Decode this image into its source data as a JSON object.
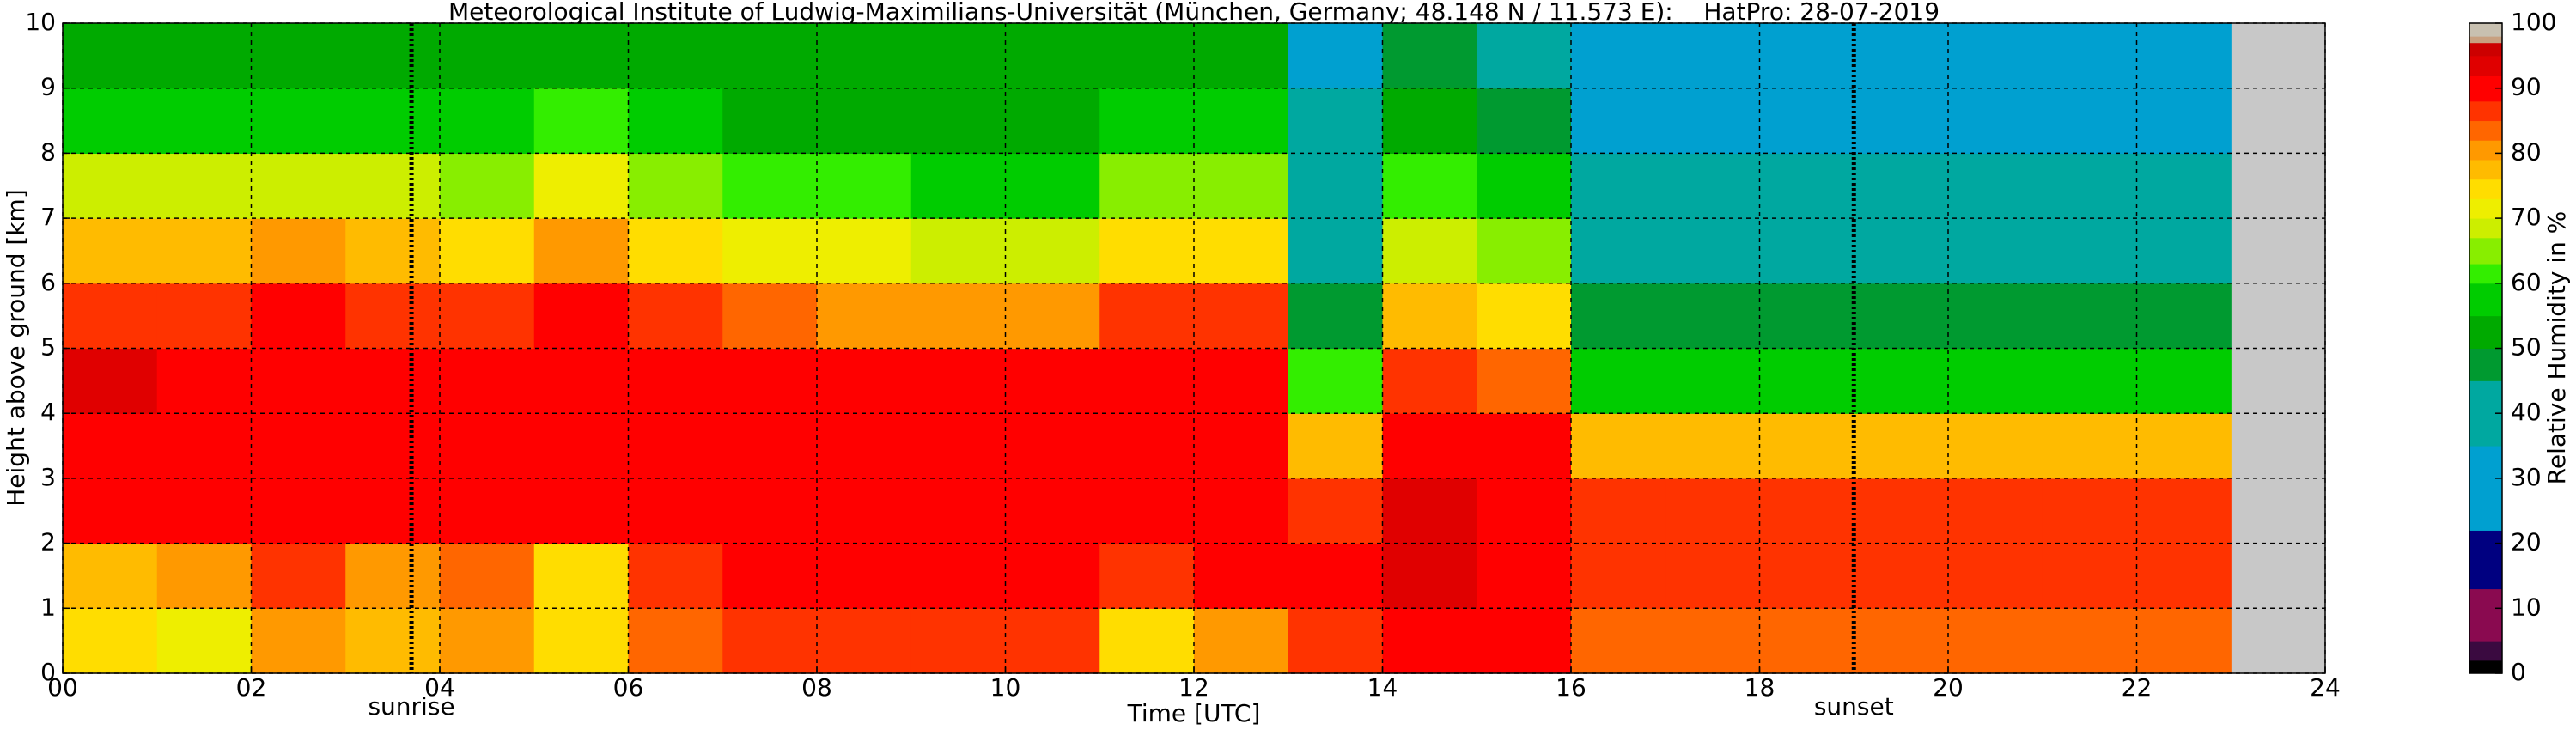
{
  "chart_data": {
    "type": "heatmap",
    "title": "Meteorological Institute of Ludwig-Maximilians-Universität (München, Germany; 48.148 N / 11.573 E):    HatPro: 28-07-2019",
    "xlabel": "Time [UTC]",
    "ylabel": "Height above ground [km]",
    "colorbar_label": "Relative Humidity in %",
    "x": [
      0,
      1,
      2,
      3,
      4,
      5,
      6,
      7,
      8,
      9,
      10,
      11,
      12,
      13,
      14,
      15,
      16,
      17,
      18,
      19,
      20,
      21,
      22
    ],
    "y": [
      0,
      1,
      2,
      3,
      4,
      5,
      6,
      7,
      8,
      9
    ],
    "z": [
      [
        75,
        78,
        90,
        92,
        93,
        88,
        78,
        68,
        58,
        52
      ],
      [
        72,
        80,
        90,
        92,
        92,
        88,
        78,
        68,
        58,
        52
      ],
      [
        82,
        86,
        90,
        92,
        92,
        90,
        80,
        70,
        60,
        53
      ],
      [
        78,
        82,
        90,
        92,
        92,
        88,
        78,
        68,
        58,
        52
      ],
      [
        80,
        84,
        90,
        92,
        92,
        86,
        76,
        66,
        56,
        52
      ],
      [
        74,
        74,
        90,
        92,
        92,
        90,
        82,
        72,
        62,
        55
      ],
      [
        85,
        88,
        92,
        92,
        92,
        86,
        74,
        64,
        56,
        52
      ],
      [
        88,
        90,
        92,
        92,
        91,
        84,
        72,
        62,
        55,
        52
      ],
      [
        88,
        90,
        92,
        92,
        90,
        82,
        72,
        62,
        55,
        52
      ],
      [
        88,
        90,
        92,
        92,
        90,
        82,
        70,
        60,
        55,
        52
      ],
      [
        86,
        90,
        92,
        92,
        90,
        82,
        70,
        60,
        54,
        52
      ],
      [
        76,
        88,
        92,
        92,
        92,
        88,
        76,
        64,
        56,
        52
      ],
      [
        82,
        90,
        92,
        92,
        90,
        86,
        76,
        64,
        56,
        52
      ],
      [
        88,
        90,
        86,
        78,
        62,
        50,
        40,
        38,
        36,
        30
      ],
      [
        92,
        93,
        94,
        92,
        86,
        78,
        70,
        62,
        55,
        48
      ],
      [
        90,
        92,
        92,
        90,
        84,
        74,
        66,
        58,
        50,
        45
      ],
      [
        85,
        88,
        86,
        78,
        58,
        48,
        40,
        38,
        35,
        30
      ],
      [
        85,
        88,
        86,
        78,
        58,
        48,
        40,
        38,
        35,
        30
      ],
      [
        85,
        88,
        86,
        78,
        58,
        48,
        40,
        38,
        35,
        30
      ],
      [
        85,
        88,
        86,
        78,
        58,
        48,
        40,
        38,
        35,
        30
      ],
      [
        85,
        88,
        86,
        78,
        58,
        48,
        40,
        38,
        35,
        30
      ],
      [
        85,
        88,
        86,
        78,
        58,
        48,
        40,
        38,
        35,
        30
      ],
      [
        85,
        88,
        86,
        78,
        58,
        48,
        40,
        38,
        35,
        30
      ]
    ],
    "xlim": [
      0,
      24
    ],
    "ylim": [
      0,
      10
    ],
    "xticks": [
      {
        "value": 0,
        "label": "00"
      },
      {
        "value": 2,
        "label": "02"
      },
      {
        "value": 4,
        "label": "04"
      },
      {
        "value": 6,
        "label": "06"
      },
      {
        "value": 8,
        "label": "08"
      },
      {
        "value": 10,
        "label": "10"
      },
      {
        "value": 12,
        "label": "12"
      },
      {
        "value": 14,
        "label": "14"
      },
      {
        "value": 16,
        "label": "16"
      },
      {
        "value": 18,
        "label": "18"
      },
      {
        "value": 20,
        "label": "20"
      },
      {
        "value": 22,
        "label": "22"
      },
      {
        "value": 24,
        "label": "24"
      }
    ],
    "yticks": [
      0,
      1,
      2,
      3,
      4,
      5,
      6,
      7,
      8,
      9,
      10
    ],
    "clim": [
      0,
      100
    ],
    "cticks": [
      0,
      10,
      20,
      30,
      40,
      50,
      60,
      70,
      80,
      90,
      100
    ],
    "colormap": {
      "bounds": [
        0,
        2,
        5,
        13,
        22,
        35,
        45,
        50,
        55,
        60,
        63,
        67,
        70,
        73,
        76,
        79,
        82,
        85,
        88,
        92,
        95,
        97,
        98,
        100
      ],
      "colors": [
        "#000000",
        "#3a0a40",
        "#8a0a50",
        "#000080",
        "#00a0d0",
        "#00a8a0",
        "#009a30",
        "#00aa00",
        "#00cc00",
        "#33ee00",
        "#88ee00",
        "#ccee00",
        "#eeee00",
        "#ffdd00",
        "#ffbb00",
        "#ff9900",
        "#ff6600",
        "#ff3300",
        "#ff0000",
        "#e00000",
        "#cc0000",
        "#c8a080",
        "#c8c0b0"
      ]
    },
    "grid": true,
    "annotations": [
      {
        "text": "sunrise",
        "x": 3.7
      },
      {
        "text": "sunset",
        "x": 19.0
      }
    ]
  }
}
